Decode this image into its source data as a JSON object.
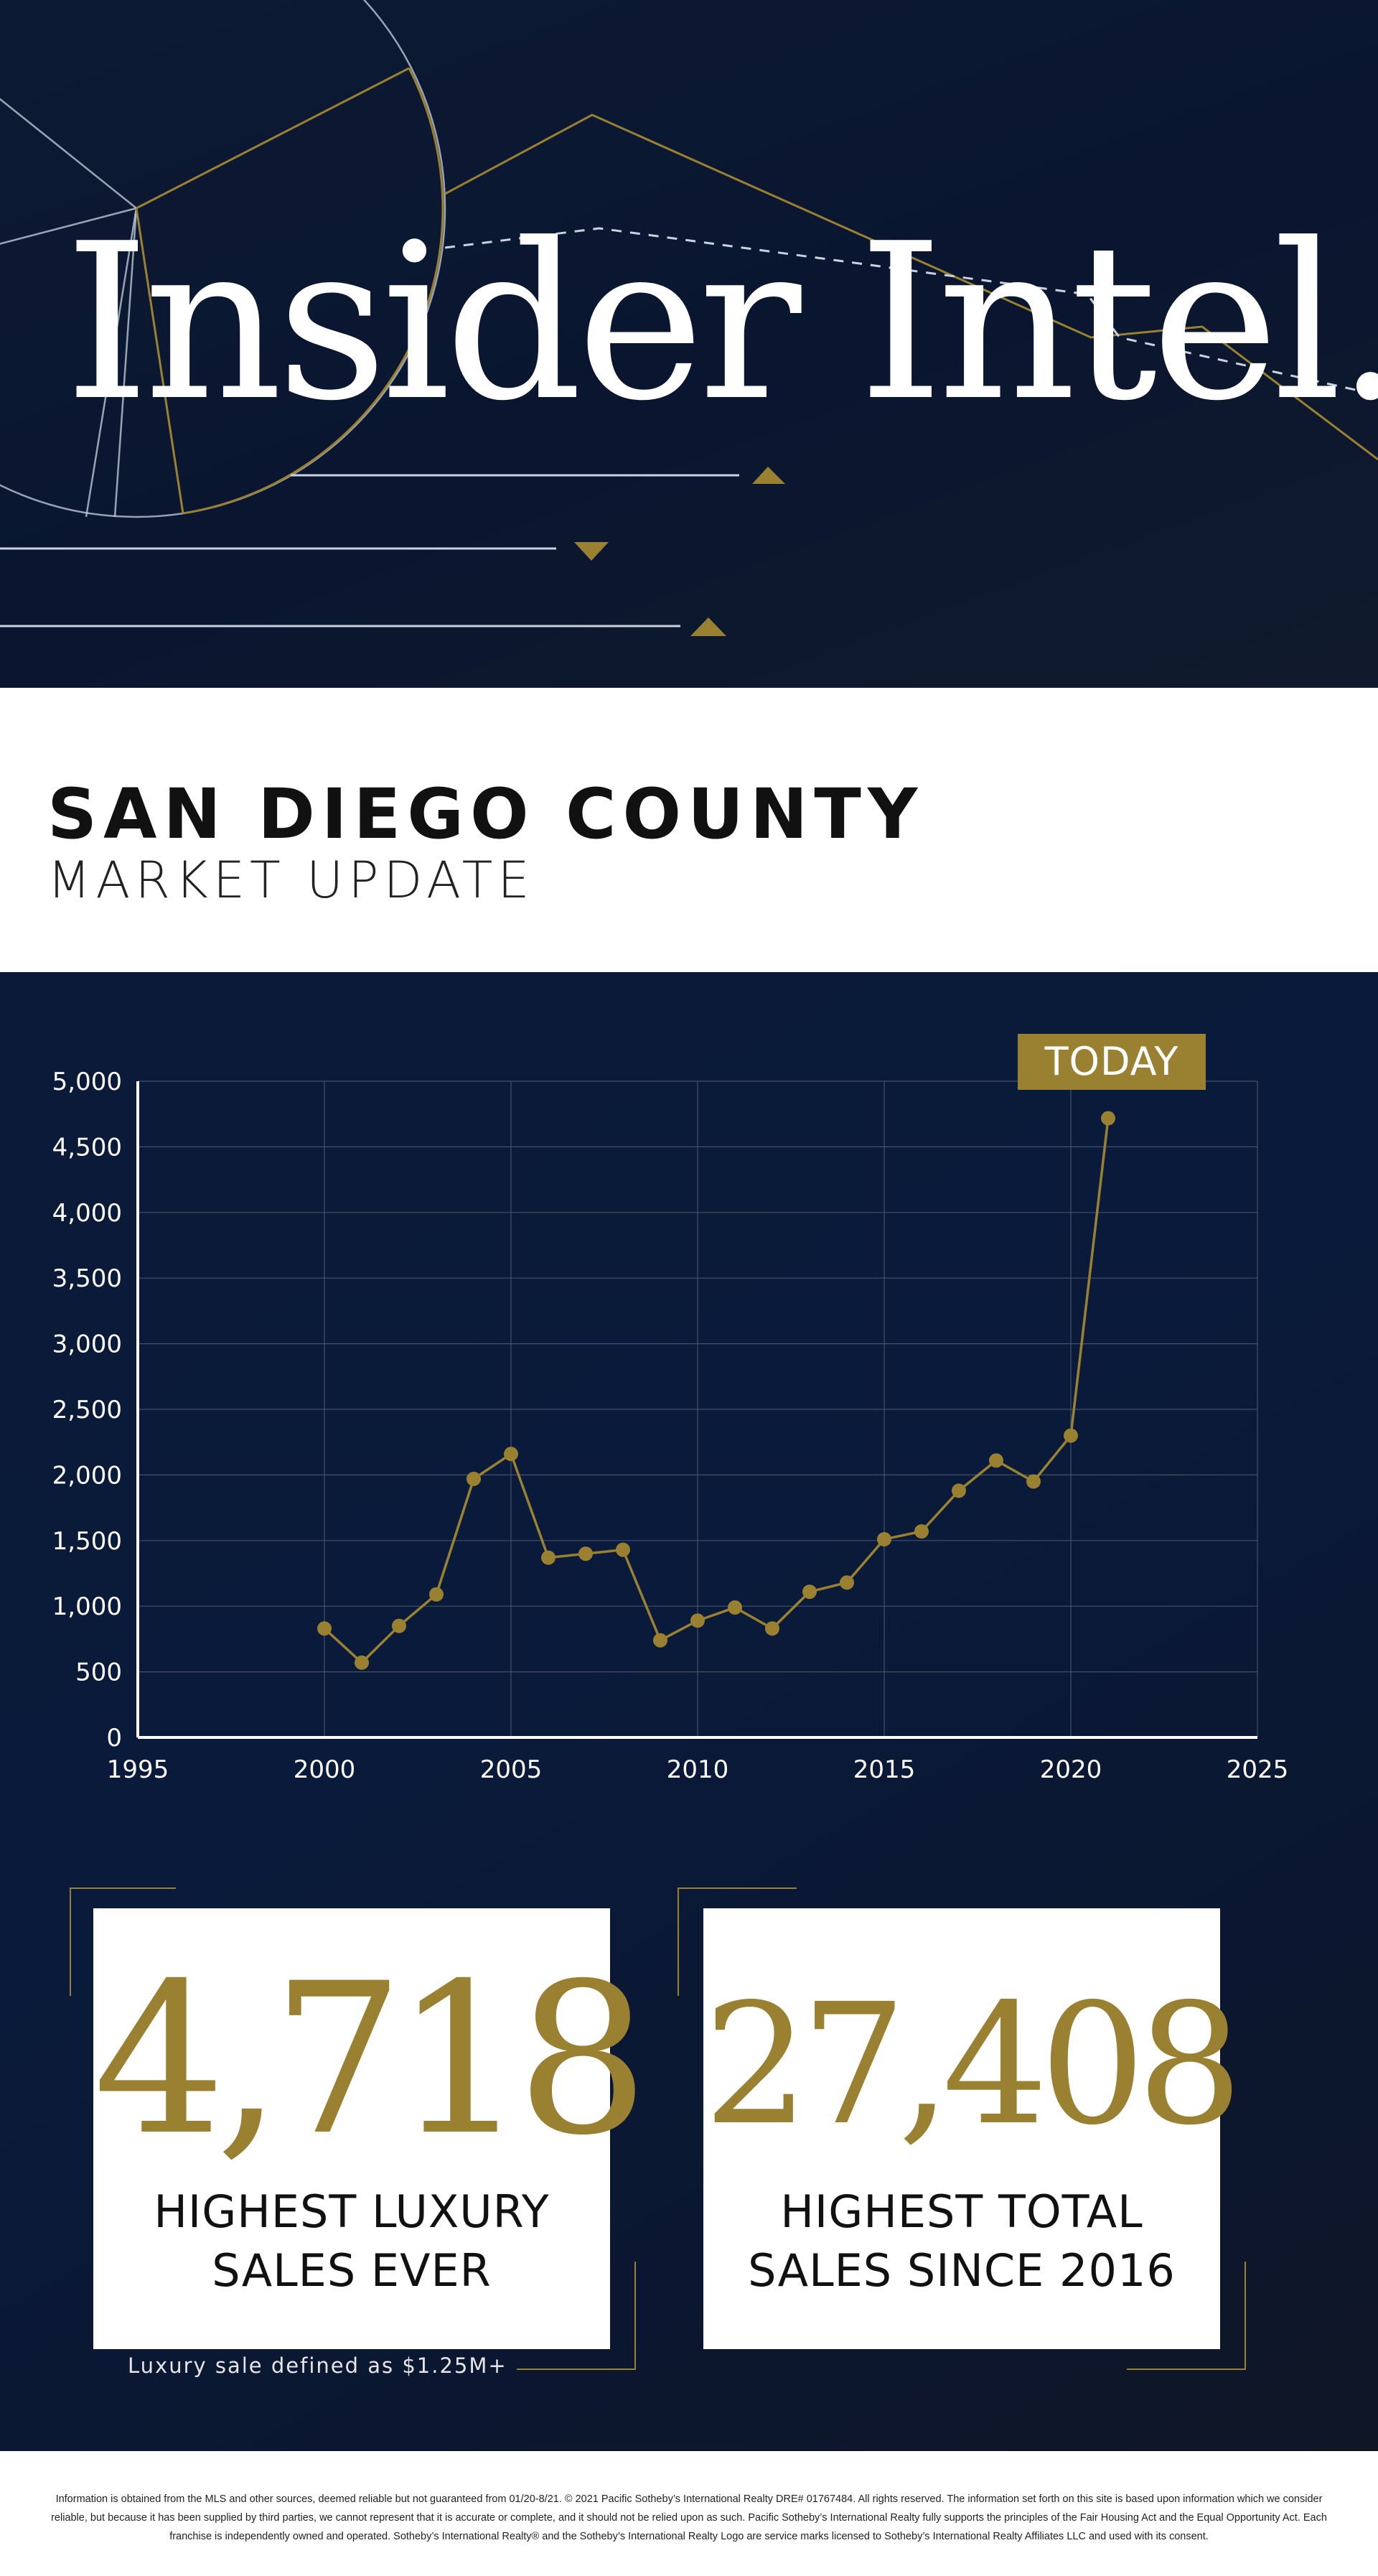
{
  "hero": {
    "title": "Insider Intel."
  },
  "heading": {
    "title": "SAN DIEGO COUNTY",
    "subtitle": "MARKET UPDATE"
  },
  "chart_data": {
    "type": "line",
    "title": "",
    "xlabel": "",
    "ylabel": "",
    "xlim": [
      1995,
      2025
    ],
    "ylim": [
      0,
      5000
    ],
    "x_ticks": [
      "1995",
      "2000",
      "2005",
      "2010",
      "2015",
      "2020",
      "2025"
    ],
    "y_ticks": [
      "0",
      "500",
      "1,000",
      "1,500",
      "2,000",
      "2,500",
      "3,000",
      "3,500",
      "4,000",
      "4,500",
      "5,000"
    ],
    "grid": true,
    "annotation": "TODAY",
    "series": [
      {
        "x": [
          2000,
          2001,
          2002,
          2003,
          2004,
          2005,
          2006,
          2007,
          2008,
          2009,
          2010,
          2011,
          2012,
          2013,
          2014,
          2015,
          2016,
          2017,
          2018,
          2019,
          2020,
          2021
        ],
        "y": [
          830,
          570,
          850,
          1090,
          1970,
          2160,
          1370,
          1400,
          1430,
          740,
          890,
          990,
          830,
          1110,
          1180,
          1510,
          1570,
          1880,
          2110,
          1950,
          2300,
          4718
        ],
        "color": "#9a8132"
      }
    ]
  },
  "stats": [
    {
      "value": "4,718",
      "label": "HIGHEST LUXURY\nSALES EVER"
    },
    {
      "value": "27,408",
      "label": "HIGHEST TOTAL\nSALES SINCE 2016"
    }
  ],
  "footnote": "Luxury sale defined as $1.25M+",
  "disclaimer": "Information is obtained from the MLS and other sources, deemed reliable but not guaranteed from 01/20-8/21. © 2021 Pacific Sotheby’s International Realty DRE# 01767484. All rights reserved. The information set forth on this site is based upon information which we consider reliable, but because it has been supplied by third parties, we cannot represent that it is accurate or complete, and it should not be relied upon as such. Pacific Sotheby’s International Realty fully supports the principles of the Fair Housing Act and the Equal Opportunity Act. Each franchise is independently owned and operated. Sotheby’s International Realty® and the Sotheby’s International Realty Logo are service marks licensed to Sotheby’s International Realty Affiliates LLC and used with its consent.",
  "colors": {
    "gold": "#9a8132",
    "navy": "#0b1a38",
    "white": "#ffffff"
  }
}
